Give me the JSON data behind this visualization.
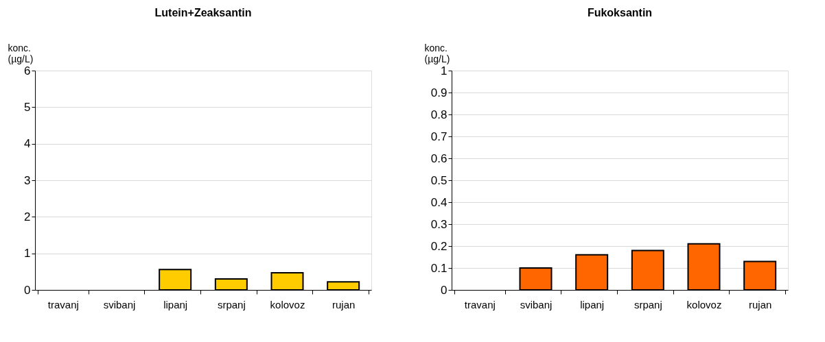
{
  "chart_data": [
    {
      "type": "bar",
      "title": "Lutein+Zeaksantin",
      "ylabel": "konc. (µg/L)",
      "categories": [
        "travanj",
        "svibanj",
        "lipanj",
        "srpanj",
        "kolovoz",
        "rujan"
      ],
      "values": [
        null,
        null,
        0.56,
        0.3,
        0.47,
        0.22
      ],
      "color": "#ffcc00",
      "ylim": [
        0,
        6
      ],
      "yticks": [
        0,
        1,
        2,
        3,
        4,
        5,
        6
      ],
      "grid": "y"
    },
    {
      "type": "bar",
      "title": "Fukoksantin",
      "ylabel": "konc. (µg/L)",
      "categories": [
        "travanj",
        "svibanj",
        "lipanj",
        "srpanj",
        "kolovoz",
        "rujan"
      ],
      "values": [
        null,
        0.1,
        0.16,
        0.18,
        0.21,
        0.13
      ],
      "color": "#ff6600",
      "ylim": [
        0,
        1
      ],
      "yticks": [
        0,
        0.1,
        0.2,
        0.3,
        0.4,
        0.5,
        0.6,
        0.7,
        0.8,
        0.9,
        1
      ],
      "grid": "y"
    }
  ]
}
